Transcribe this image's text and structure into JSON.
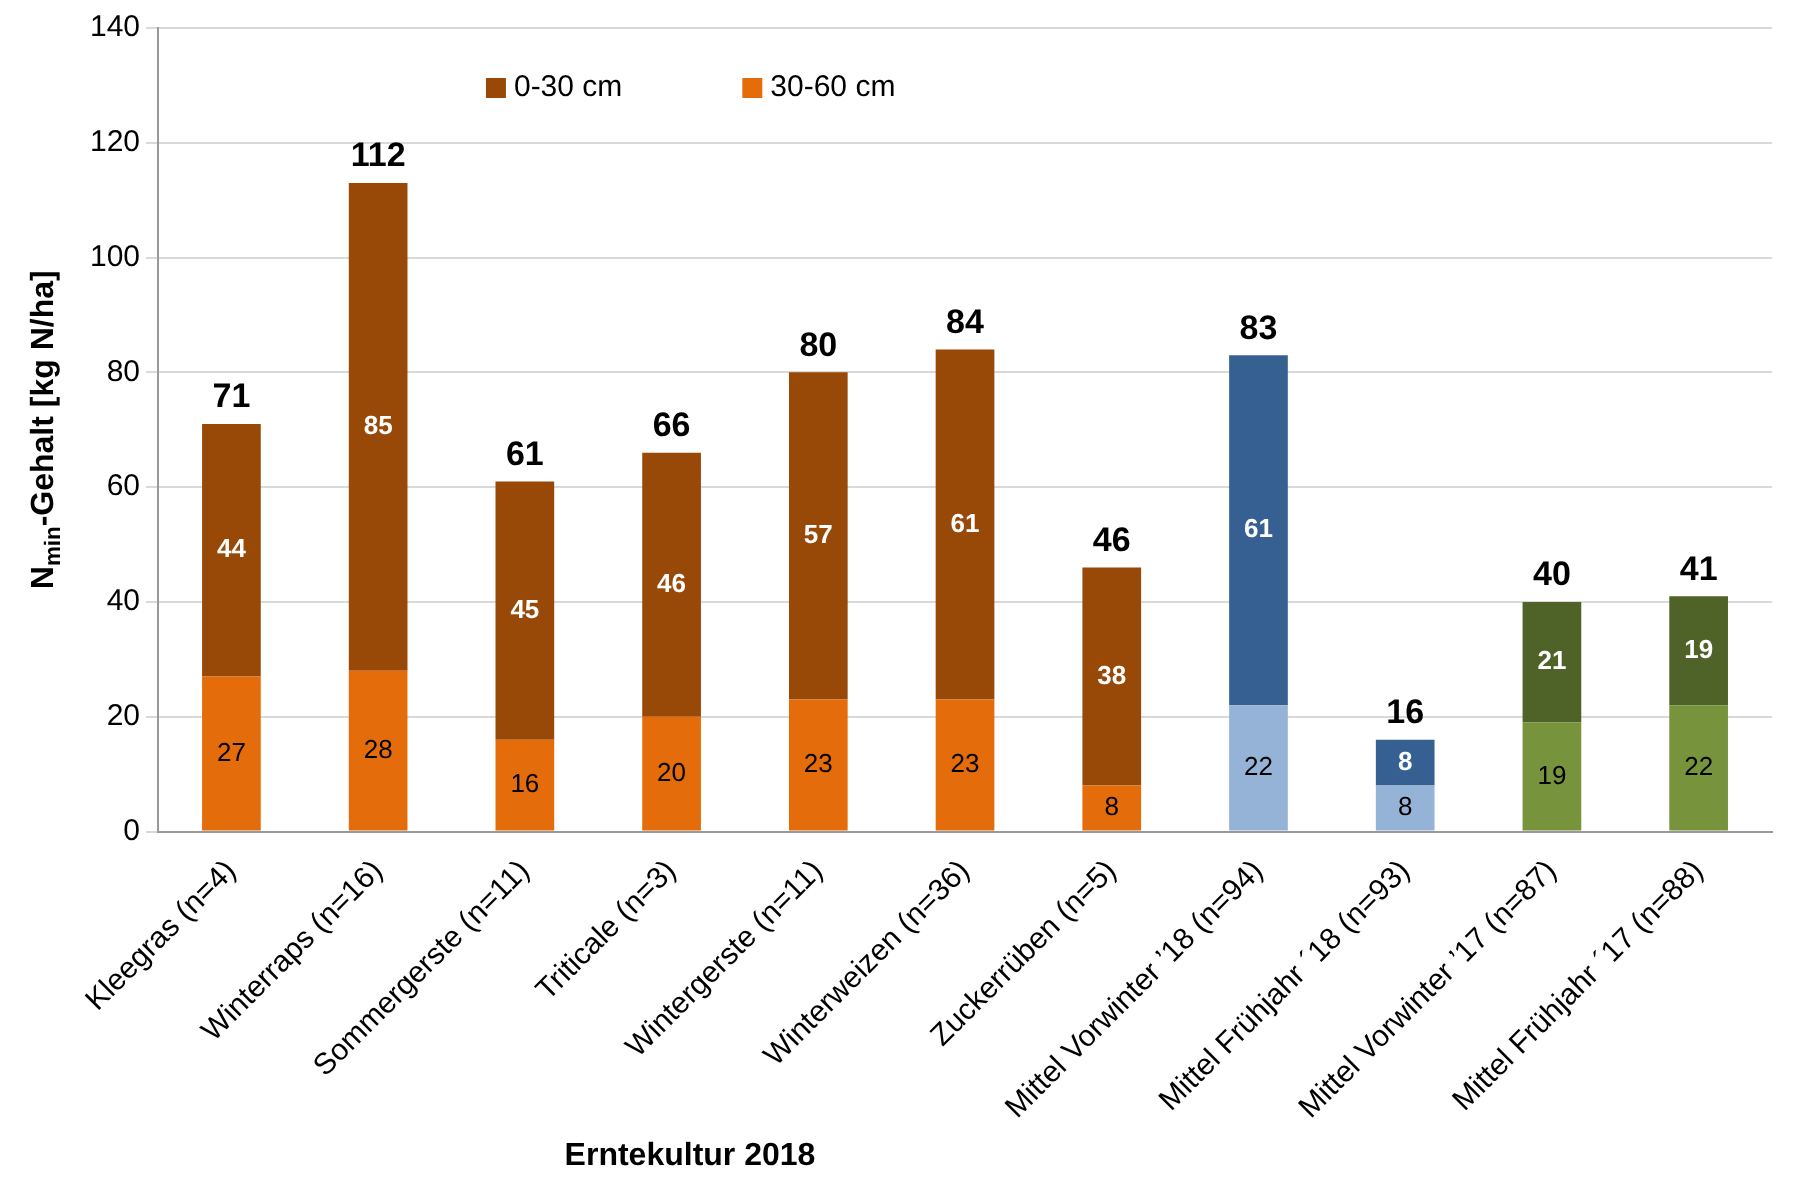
{
  "chart_data": {
    "type": "bar",
    "stacked": true,
    "xlabel": "Erntekultur 2018",
    "ylabel": "N$_{min}$-Gehalt [kg N/ha]",
    "categories": [
      "Kleegras (n=4)",
      "Winterraps (n=16)",
      "Sommergerste (n=11)",
      "Triticale (n=3)",
      "Wintergerste (n=11)",
      "Winterweizen (n=36)",
      "Zuckerrüben (n=5)",
      "Mittel Vorwinter ’18 (n=94)",
      "Mittel Frühjahr ´18 (n=93)",
      "Mittel Vorwinter ’17 (n=87)",
      "Mittel Frühjahr ´17 (n=88)"
    ],
    "series": [
      {
        "name": "30-60 cm",
        "color": "#e46c0a",
        "colors": [
          "#e46c0a",
          "#e46c0a",
          "#e46c0a",
          "#e46c0a",
          "#e46c0a",
          "#e46c0a",
          "#e46c0a",
          "#95b3d7",
          "#95b3d7",
          "#77933c",
          "#77933c"
        ],
        "values": [
          27,
          28,
          16,
          20,
          23,
          23,
          8,
          22,
          8,
          19,
          22
        ]
      },
      {
        "name": "0-30 cm",
        "color": "#984807",
        "colors": [
          "#984807",
          "#984807",
          "#984807",
          "#984807",
          "#984807",
          "#984807",
          "#984807",
          "#376092",
          "#376092",
          "#4f6228",
          "#4f6228"
        ],
        "values": [
          44,
          85,
          45,
          46,
          57,
          61,
          38,
          61,
          8,
          21,
          19
        ]
      }
    ],
    "totals": [
      "71",
      "112",
      "61",
      "66",
      "80",
      "84",
      "46",
      "83",
      "16",
      "40",
      "41"
    ],
    "data_labels": true,
    "ylim": [
      0,
      140
    ],
    "yticks": [
      0,
      20,
      40,
      60,
      80,
      100,
      120,
      140
    ],
    "grid": "y",
    "legend": "top"
  }
}
